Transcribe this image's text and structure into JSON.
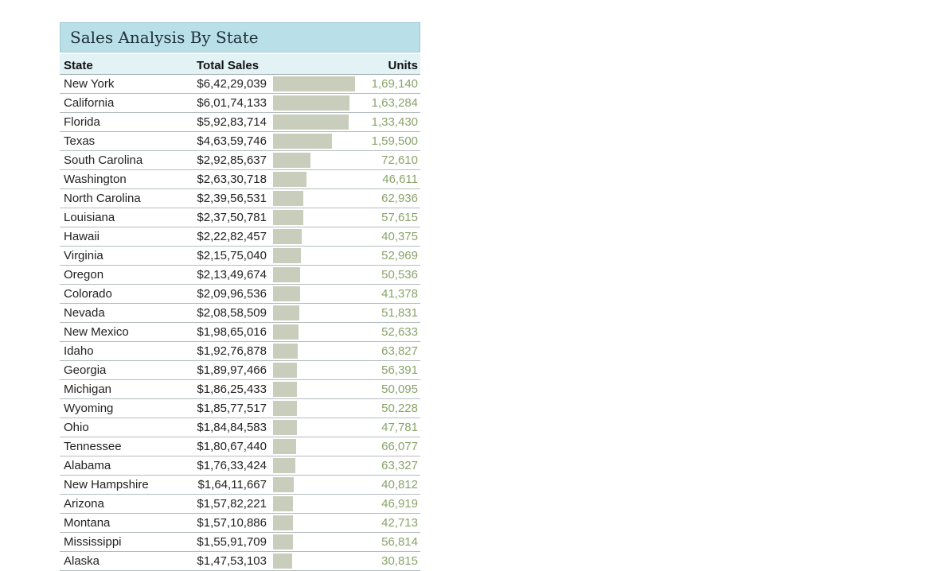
{
  "title": "Sales Analysis By State",
  "headers": {
    "state": "State",
    "total_sales": "Total Sales",
    "units": "Units"
  },
  "colors": {
    "title_bg": "#b9e0e8",
    "header_bg": "#e3f2f5",
    "bar": "#c9cdbb",
    "units_text": "#8aa36a"
  },
  "rows": [
    {
      "state": "New York",
      "sales": "$6,42,29,039",
      "sales_value": 64229039,
      "units": "1,69,140"
    },
    {
      "state": "California",
      "sales": "$6,01,74,133",
      "sales_value": 60174133,
      "units": "1,63,284"
    },
    {
      "state": "Florida",
      "sales": "$5,92,83,714",
      "sales_value": 59283714,
      "units": "1,33,430"
    },
    {
      "state": "Texas",
      "sales": "$4,63,59,746",
      "sales_value": 46359746,
      "units": "1,59,500"
    },
    {
      "state": "South Carolina",
      "sales": "$2,92,85,637",
      "sales_value": 29285637,
      "units": "72,610"
    },
    {
      "state": "Washington",
      "sales": "$2,63,30,718",
      "sales_value": 26330718,
      "units": "46,611"
    },
    {
      "state": "North Carolina",
      "sales": "$2,39,56,531",
      "sales_value": 23956531,
      "units": "62,936"
    },
    {
      "state": "Louisiana",
      "sales": "$2,37,50,781",
      "sales_value": 23750781,
      "units": "57,615"
    },
    {
      "state": "Hawaii",
      "sales": "$2,22,82,457",
      "sales_value": 22282457,
      "units": "40,375"
    },
    {
      "state": "Virginia",
      "sales": "$2,15,75,040",
      "sales_value": 21575040,
      "units": "52,969"
    },
    {
      "state": "Oregon",
      "sales": "$2,13,49,674",
      "sales_value": 21349674,
      "units": "50,536"
    },
    {
      "state": "Colorado",
      "sales": "$2,09,96,536",
      "sales_value": 20996536,
      "units": "41,378"
    },
    {
      "state": "Nevada",
      "sales": "$2,08,58,509",
      "sales_value": 20858509,
      "units": "51,831"
    },
    {
      "state": "New Mexico",
      "sales": "$1,98,65,016",
      "sales_value": 19865016,
      "units": "52,633"
    },
    {
      "state": "Idaho",
      "sales": "$1,92,76,878",
      "sales_value": 19276878,
      "units": "63,827"
    },
    {
      "state": "Georgia",
      "sales": "$1,89,97,466",
      "sales_value": 18997466,
      "units": "56,391"
    },
    {
      "state": "Michigan",
      "sales": "$1,86,25,433",
      "sales_value": 18625433,
      "units": "50,095"
    },
    {
      "state": "Wyoming",
      "sales": "$1,85,77,517",
      "sales_value": 18577517,
      "units": "50,228"
    },
    {
      "state": "Ohio",
      "sales": "$1,84,84,583",
      "sales_value": 18484583,
      "units": "47,781"
    },
    {
      "state": "Tennessee",
      "sales": "$1,80,67,440",
      "sales_value": 18067440,
      "units": "66,077"
    },
    {
      "state": "Alabama",
      "sales": "$1,76,33,424",
      "sales_value": 17633424,
      "units": "63,327"
    },
    {
      "state": "New Hampshire",
      "sales": "$1,64,11,667",
      "sales_value": 16411667,
      "units": "40,812"
    },
    {
      "state": "Arizona",
      "sales": "$1,57,82,221",
      "sales_value": 15782221,
      "units": "46,919"
    },
    {
      "state": "Montana",
      "sales": "$1,57,10,886",
      "sales_value": 15710886,
      "units": "42,713"
    },
    {
      "state": "Mississippi",
      "sales": "$1,55,91,709",
      "sales_value": 15591709,
      "units": "56,814"
    },
    {
      "state": "Alaska",
      "sales": "$1,47,53,103",
      "sales_value": 14753103,
      "units": "30,815"
    }
  ]
}
